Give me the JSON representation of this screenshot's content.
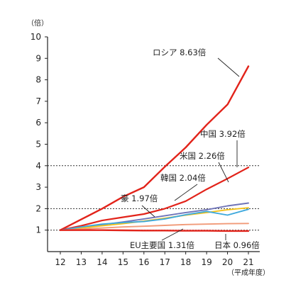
{
  "chart_data": {
    "type": "line",
    "y_unit": "（倍）",
    "x_unit": "（平成年度）",
    "x": [
      12,
      13,
      14,
      15,
      16,
      17,
      18,
      19,
      20,
      21
    ],
    "x_tick_labels": [
      "12",
      "13",
      "14",
      "15",
      "16",
      "17",
      "18",
      "19",
      "20",
      "21"
    ],
    "ylim": [
      0,
      10
    ],
    "y_ticks": [
      1,
      2,
      3,
      4,
      5,
      6,
      7,
      8,
      9,
      10
    ],
    "reference_lines": [
      1,
      2,
      4
    ],
    "grid": false,
    "series": [
      {
        "name": "ロシア",
        "label": "ロシア 8.63倍",
        "color": "#e2231a",
        "values": [
          1.0,
          1.5,
          2.0,
          2.55,
          3.0,
          3.95,
          4.85,
          5.9,
          6.85,
          8.63
        ]
      },
      {
        "name": "中国",
        "label": "中国 3.92倍",
        "color": "#e2231a",
        "values": [
          1.0,
          1.2,
          1.45,
          1.6,
          1.75,
          2.0,
          2.35,
          2.9,
          3.4,
          3.92
        ]
      },
      {
        "name": "米国",
        "label": "米国 2.26倍",
        "color": "#6f74b8",
        "values": [
          1.0,
          1.12,
          1.25,
          1.38,
          1.52,
          1.67,
          1.82,
          1.95,
          2.13,
          2.26
        ]
      },
      {
        "name": "韓国",
        "label": "韓国 2.04倍",
        "color": "#f3c21a",
        "values": [
          1.0,
          1.1,
          1.2,
          1.3,
          1.42,
          1.55,
          1.7,
          1.82,
          1.95,
          2.04
        ]
      },
      {
        "name": "豪",
        "label": "豪 1.97倍",
        "color": "#3fa9dc",
        "values": [
          1.0,
          1.15,
          1.28,
          1.35,
          1.4,
          1.52,
          1.72,
          1.87,
          1.7,
          1.97
        ]
      },
      {
        "name": "EU主要国",
        "label": "EU主要国 1.31倍",
        "color": "#f19a78",
        "values": [
          1.0,
          1.05,
          1.1,
          1.15,
          1.18,
          1.22,
          1.26,
          1.28,
          1.3,
          1.31
        ]
      },
      {
        "name": "日本",
        "label": "日本 0.96倍",
        "color": "#e2231a",
        "values": [
          1.0,
          1.0,
          1.0,
          0.99,
          0.98,
          0.98,
          0.97,
          0.97,
          0.96,
          0.96
        ]
      }
    ]
  }
}
